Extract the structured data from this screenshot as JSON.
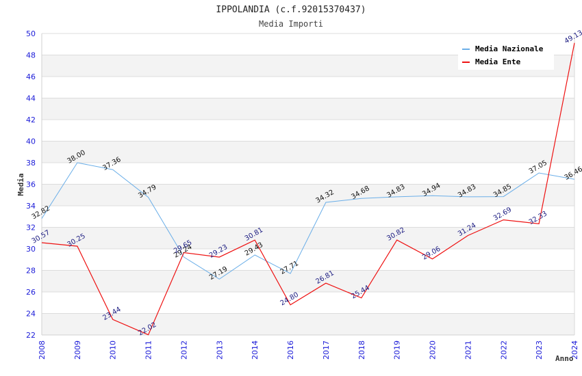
{
  "chart_data": {
    "type": "line",
    "title": "IPPOLANDIA (c.f.92015370437)",
    "subtitle": "Media Importi",
    "xlabel": "Anno",
    "ylabel": "Media",
    "ylim": [
      22,
      50
    ],
    "yticks": [
      "22",
      "24",
      "26",
      "28",
      "30",
      "32",
      "34",
      "36",
      "38",
      "40",
      "42",
      "44",
      "46",
      "48",
      "50"
    ],
    "grid": true,
    "legend_position": "top-right",
    "categories": [
      "2008",
      "2009",
      "2010",
      "2011",
      "2012",
      "2013",
      "2014",
      "2016",
      "2017",
      "2018",
      "2019",
      "2020",
      "2021",
      "2022",
      "2023",
      "2024"
    ],
    "series": [
      {
        "name": "Media Nazionale",
        "color": "#6aaee8",
        "values": [
          32.82,
          38.0,
          37.36,
          34.79,
          29.24,
          27.19,
          29.43,
          27.71,
          34.32,
          34.68,
          34.83,
          34.94,
          34.83,
          34.85,
          37.05,
          36.46
        ],
        "labels": [
          "32.82",
          "38.00",
          "37.36",
          "34.79",
          "29.24",
          "27.19",
          "29.43",
          "27.71",
          "34.32",
          "34.68",
          "34.83",
          "34.94",
          "34.83",
          "34.85",
          "37.05",
          "36.46"
        ]
      },
      {
        "name": "Media Ente",
        "color": "#ee1111",
        "values": [
          30.57,
          30.25,
          23.44,
          22.02,
          29.65,
          29.23,
          30.81,
          24.8,
          26.81,
          25.44,
          30.82,
          29.06,
          31.24,
          32.69,
          32.33,
          49.13
        ],
        "labels": [
          "30.57",
          "30.25",
          "23.44",
          "22.02",
          "29.65",
          "29.23",
          "30.81",
          "24.80",
          "26.81",
          "25.44",
          "30.82",
          "29.06",
          "31.24",
          "32.69",
          "32.33",
          "49.13"
        ]
      }
    ]
  }
}
